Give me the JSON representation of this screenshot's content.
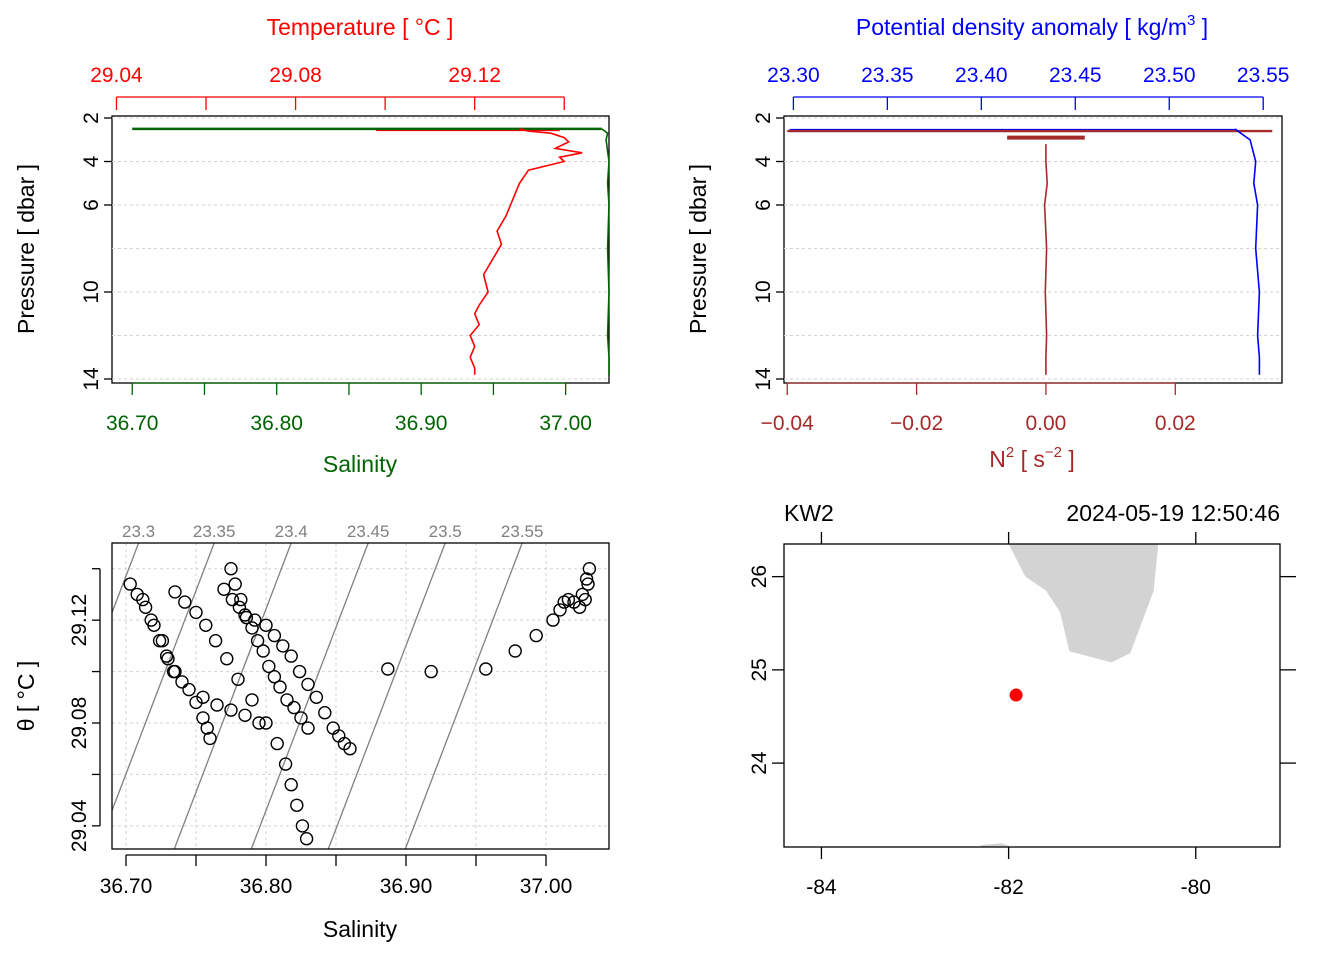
{
  "colors": {
    "temperature": "#ff0000",
    "salinity": "#006400",
    "density": "#0000ff",
    "n2": "#a52a2a",
    "grid": "#d3d3d3",
    "isopycnal": "#808080",
    "land": "#d3d3d3",
    "station": "#ff0000"
  },
  "chart_data": [
    {
      "panel": "salinity-temperature-profile",
      "type": "line",
      "ylabel": "Pressure [ dbar ]",
      "y_reversed": true,
      "ylim": [
        14.0,
        2.0
      ],
      "y_ticks": [
        2,
        4,
        6,
        10,
        14
      ],
      "y_grid": [
        2,
        4,
        6,
        8,
        10,
        12,
        14
      ],
      "bottom_axis": {
        "label": "Salinity",
        "range": [
          36.686,
          37.03
        ],
        "ticks": [
          36.7,
          36.75,
          36.8,
          36.85,
          36.9,
          36.95,
          37.0
        ],
        "labeled_ticks": [
          "36.70",
          "36.80",
          "36.90",
          "37.00"
        ]
      },
      "top_axis": {
        "label": "Temperature [ °C ]",
        "range": [
          29.039,
          29.15
        ],
        "ticks": [
          29.04,
          29.06,
          29.08,
          29.1,
          29.12,
          29.14
        ],
        "labeled_ticks": [
          "29.04",
          "29.08",
          "29.12"
        ]
      },
      "series": [
        {
          "axis": "top",
          "values_x": [
            29.13,
            29.132,
            29.137,
            29.14,
            29.141,
            29.138,
            29.144,
            29.139,
            29.14,
            29.132,
            29.13,
            29.129,
            29.128,
            29.127,
            29.125,
            29.126,
            29.124,
            29.122,
            29.123,
            29.121,
            29.12,
            29.121,
            29.119,
            29.12,
            29.119,
            29.12,
            29.12
          ],
          "values_y": [
            2.5,
            2.6,
            2.7,
            2.9,
            3.1,
            3.4,
            3.6,
            3.8,
            4.0,
            4.4,
            5.0,
            5.5,
            6.0,
            6.5,
            7.2,
            7.8,
            8.5,
            9.2,
            10.0,
            10.6,
            11.0,
            11.5,
            12.0,
            12.5,
            13.0,
            13.5,
            13.8
          ]
        },
        {
          "axis": "bottom",
          "values_x": [
            37.025,
            37.029,
            37.028,
            37.03,
            37.029,
            37.03,
            37.029,
            37.03,
            37.029,
            37.03,
            37.03
          ],
          "values_y": [
            2.5,
            2.7,
            3.0,
            4.0,
            5.0,
            6.0,
            8.0,
            10.0,
            12.0,
            13.0,
            13.8
          ]
        }
      ]
    },
    {
      "panel": "density-n2-profile",
      "type": "line",
      "ylabel": "Pressure [ dbar ]",
      "y_reversed": true,
      "ylim": [
        14.0,
        2.0
      ],
      "y_ticks": [
        2,
        4,
        6,
        10,
        14
      ],
      "y_grid": [
        2,
        4,
        6,
        8,
        10,
        12,
        14
      ],
      "top_axis": {
        "label": "Potential density anomaly [ kg/m",
        "label_sup": "3",
        "label_end": " ]",
        "range": [
          23.295,
          23.56
        ],
        "ticks": [
          23.3,
          23.35,
          23.4,
          23.45,
          23.5,
          23.55
        ],
        "labeled_ticks": [
          "23.30",
          "23.35",
          "23.40",
          "23.45",
          "23.50",
          "23.55"
        ]
      },
      "bottom_axis": {
        "label": "N",
        "label_sup": "2",
        "label_mid": " [ s",
        "label_sup2": "−2",
        "label_end": " ]",
        "range": [
          -0.0405,
          0.0365
        ],
        "ticks": [
          -0.04,
          -0.02,
          0.0,
          0.02
        ],
        "labeled_ticks": [
          "−0.04",
          "−0.02",
          "0.00",
          "0.02"
        ]
      },
      "series": [
        {
          "axis": "top",
          "values_x": [
            23.535,
            23.538,
            23.543,
            23.546,
            23.545,
            23.547,
            23.546,
            23.548,
            23.547,
            23.548,
            23.548
          ],
          "values_y": [
            2.5,
            2.7,
            3.0,
            4.0,
            5.0,
            6.0,
            8.0,
            10.0,
            12.0,
            13.0,
            13.8
          ]
        },
        {
          "axis": "bottom",
          "values_x": [
            0.0,
            0.0,
            0.0002,
            -0.0002,
            0.0001,
            -0.0001,
            0.0001,
            0.0,
            0.0
          ],
          "values_y": [
            3.2,
            4.0,
            5.0,
            6.0,
            8.0,
            10.0,
            12.0,
            13.0,
            13.8
          ]
        }
      ]
    },
    {
      "panel": "ts-diagram",
      "type": "scatter",
      "xlabel": "Salinity",
      "ylabel": "θ [ °C ]",
      "xlim": [
        36.69,
        37.045
      ],
      "ylim": [
        29.031,
        29.15
      ],
      "x_ticks": [
        36.7,
        36.75,
        36.8,
        36.85,
        36.9,
        36.95,
        37.0
      ],
      "x_labeled_ticks": [
        "36.70",
        "36.80",
        "36.90",
        "37.00"
      ],
      "y_ticks": [
        29.04,
        29.06,
        29.08,
        29.1,
        29.12,
        29.14
      ],
      "y_labeled_ticks": [
        "29.04",
        "29.08",
        "29.12"
      ],
      "isopycnal_labels": [
        "23.3",
        "23.35",
        "23.4",
        "23.45",
        "23.5",
        "23.55"
      ],
      "points_x": [
        36.703,
        36.708,
        36.714,
        36.72,
        36.726,
        36.73,
        36.735,
        36.74,
        36.745,
        36.75,
        36.755,
        36.758,
        36.76,
        36.712,
        36.718,
        36.724,
        36.729,
        36.734,
        36.775,
        36.778,
        36.782,
        36.786,
        36.79,
        36.794,
        36.798,
        36.802,
        36.806,
        36.81,
        36.815,
        36.82,
        36.825,
        36.83,
        36.77,
        36.776,
        36.781,
        36.785,
        36.792,
        36.8,
        36.806,
        36.812,
        36.818,
        36.824,
        36.83,
        36.836,
        36.842,
        36.848,
        36.852,
        36.856,
        36.86,
        36.735,
        36.742,
        36.75,
        36.757,
        36.764,
        36.772,
        36.78,
        36.79,
        36.8,
        36.808,
        36.814,
        36.818,
        36.822,
        36.826,
        36.829,
        36.755,
        36.765,
        36.775,
        36.785,
        36.795,
        36.887,
        36.918,
        36.957,
        36.978,
        36.993,
        37.005,
        37.01,
        37.013,
        37.016,
        37.02,
        37.024,
        37.028,
        37.03,
        37.031,
        37.029,
        37.026
      ],
      "points_y": [
        29.134,
        29.13,
        29.125,
        29.118,
        29.112,
        29.105,
        29.1,
        29.096,
        29.093,
        29.088,
        29.082,
        29.078,
        29.074,
        29.128,
        29.12,
        29.112,
        29.106,
        29.1,
        29.14,
        29.134,
        29.128,
        29.121,
        29.117,
        29.112,
        29.108,
        29.102,
        29.098,
        29.094,
        29.089,
        29.086,
        29.082,
        29.078,
        29.132,
        29.128,
        29.125,
        29.122,
        29.12,
        29.118,
        29.114,
        29.11,
        29.106,
        29.1,
        29.095,
        29.09,
        29.084,
        29.078,
        29.075,
        29.072,
        29.07,
        29.131,
        29.127,
        29.123,
        29.118,
        29.112,
        29.105,
        29.097,
        29.089,
        29.08,
        29.072,
        29.064,
        29.056,
        29.048,
        29.04,
        29.035,
        29.09,
        29.087,
        29.085,
        29.083,
        29.08,
        29.101,
        29.1,
        29.101,
        29.108,
        29.114,
        29.12,
        29.124,
        29.127,
        29.128,
        29.127,
        29.125,
        29.128,
        29.134,
        29.14,
        29.136,
        29.13
      ]
    },
    {
      "panel": "station-map",
      "type": "scatter",
      "station_label": "KW2",
      "timestamp": "2024-05-19 12:50:46",
      "xlim": [
        -84.4,
        -79.1
      ],
      "ylim": [
        23.1,
        26.35
      ],
      "x_ticks": [
        -84,
        -82,
        -80
      ],
      "x_tick_labels": [
        "-84",
        "-82",
        "-80"
      ],
      "y_ticks": [
        24,
        25,
        26
      ],
      "y_tick_labels": [
        "24",
        "25",
        "26"
      ],
      "station": {
        "lon": -81.92,
        "lat": 24.73
      },
      "land_polygon": [
        [
          -82.0,
          26.35
        ],
        [
          -81.82,
          26.0
        ],
        [
          -81.6,
          25.85
        ],
        [
          -81.45,
          25.62
        ],
        [
          -81.35,
          25.2
        ],
        [
          -80.9,
          25.08
        ],
        [
          -80.7,
          25.18
        ],
        [
          -80.55,
          25.58
        ],
        [
          -80.45,
          25.85
        ],
        [
          -80.4,
          26.35
        ]
      ],
      "land_islet": [
        [
          -82.3,
          23.12
        ],
        [
          -82.08,
          23.14
        ],
        [
          -81.98,
          23.11
        ],
        [
          -82.3,
          23.1
        ]
      ]
    }
  ]
}
